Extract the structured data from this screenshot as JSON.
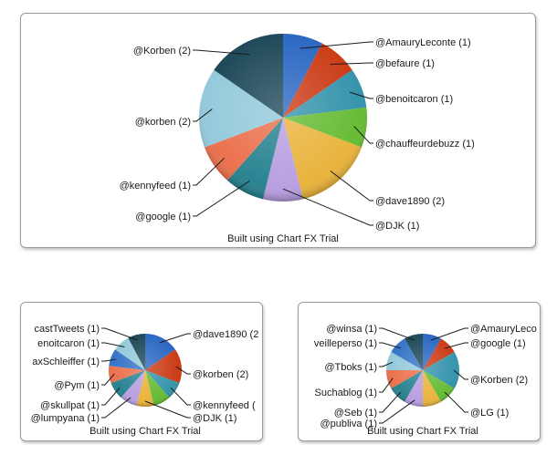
{
  "charts_ui": [
    {
      "id": "main",
      "footer": "Built using Chart FX Trial"
    },
    {
      "id": "left",
      "footer": "Built using Chart FX Trial"
    },
    {
      "id": "right",
      "footer": "Built using Chart FX Trial"
    }
  ],
  "chart_data": [
    {
      "type": "pie",
      "title": "",
      "footer": "Built using Chart FX Trial",
      "slices": [
        {
          "label": "@AmauryLeconte (1)",
          "value": 1,
          "color": "#1f5fbf"
        },
        {
          "label": "@befaure (1)",
          "value": 1,
          "color": "#c8320a"
        },
        {
          "label": "@benoitcaron (1)",
          "value": 1,
          "color": "#2b8fa8"
        },
        {
          "label": "@chauffeurdebuzz (1)",
          "value": 1,
          "color": "#5fb82b"
        },
        {
          "label": "@dave1890 (2)",
          "value": 2,
          "color": "#e8b033"
        },
        {
          "label": "@DJK (1)",
          "value": 1,
          "color": "#b59be0"
        },
        {
          "label": "@google (1)",
          "value": 1,
          "color": "#1f7d8c"
        },
        {
          "label": "@kennyfeed (1)",
          "value": 1,
          "color": "#ea6a45"
        },
        {
          "label": "@korben (2)",
          "value": 2,
          "color": "#8fc7d9"
        },
        {
          "label": "@Korben (2)",
          "value": 2,
          "color": "#123f4f"
        }
      ]
    },
    {
      "type": "pie",
      "title": "",
      "footer": "Built using Chart FX Trial",
      "slices": [
        {
          "label": "@dave1890 (2",
          "value": 2,
          "color": "#1f5fbf"
        },
        {
          "label": "@korben (2)",
          "value": 2,
          "color": "#c8320a"
        },
        {
          "label": "@kennyfeed (",
          "value": 1,
          "color": "#2b8fa8"
        },
        {
          "label": "",
          "value": 1,
          "color": "#5fb82b"
        },
        {
          "label": "@DJK (1)",
          "value": 1,
          "color": "#e8b033"
        },
        {
          "label": "@lumpyana (1)",
          "value": 1,
          "color": "#b59be0"
        },
        {
          "label": "@skullpat (1)",
          "value": 1,
          "color": "#1f7d8c"
        },
        {
          "label": "@Pym (1)",
          "value": 1,
          "color": "#ea6a45"
        },
        {
          "label": "axSchleiffer (1)",
          "value": 1,
          "color": "#2a6cc4"
        },
        {
          "label": "enoitcaron (1)",
          "value": 1,
          "color": "#8fc7d9"
        },
        {
          "label": "castTweets (1)",
          "value": 1,
          "color": "#123f4f"
        }
      ]
    },
    {
      "type": "pie",
      "title": "",
      "footer": "Built using Chart FX Trial",
      "slices": [
        {
          "label": "@AmauryLeco",
          "value": 1,
          "color": "#1f5fbf"
        },
        {
          "label": "@google (1)",
          "value": 1,
          "color": "#c8320a"
        },
        {
          "label": "@Korben (2)",
          "value": 2,
          "color": "#2b8fa8"
        },
        {
          "label": "@LG (1)",
          "value": 1,
          "color": "#5fb82b"
        },
        {
          "label": "",
          "value": 1,
          "color": "#e8b033"
        },
        {
          "label": "@publiva (1)",
          "value": 1,
          "color": "#b59be0"
        },
        {
          "label": "@Seb (1)",
          "value": 1,
          "color": "#1f7d8c"
        },
        {
          "label": "Suchablog (1)",
          "value": 1,
          "color": "#ea6a45"
        },
        {
          "label": "@Tboks (1)",
          "value": 1,
          "color": "#8fc7d9"
        },
        {
          "label": "veilleperso (1)",
          "value": 1,
          "color": "#2a6cc4"
        },
        {
          "label": "@winsa (1)",
          "value": 1,
          "color": "#123f4f"
        }
      ]
    }
  ]
}
